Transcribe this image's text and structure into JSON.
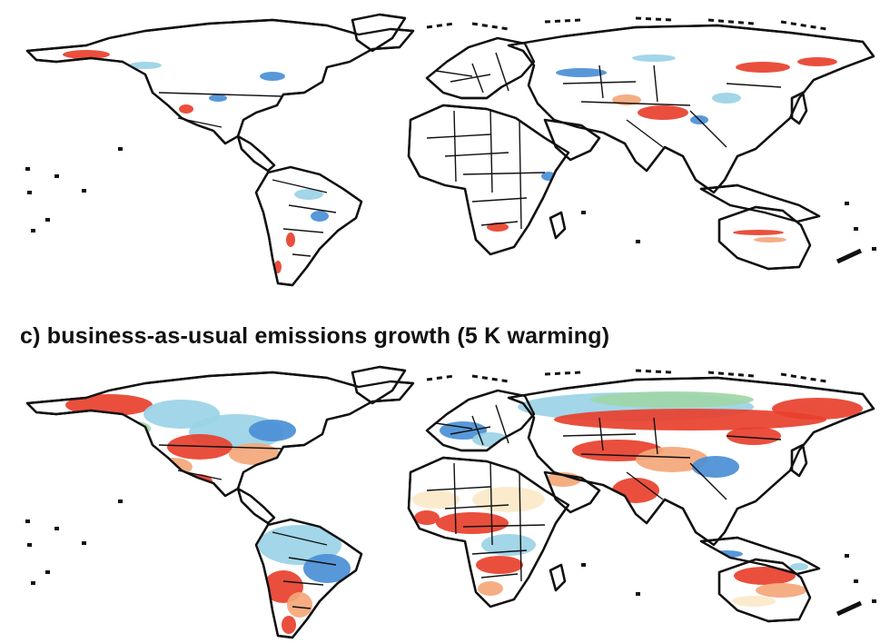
{
  "panel_c": {
    "title": "c) business-as-usual emissions growth (5 K warming)"
  },
  "colors": {
    "land": "#ffffff",
    "outline": "#111111",
    "strong_positive": "#e8402c",
    "weak_positive": "#f4a77a",
    "pale": "#fbe9c8",
    "neutral": "#eef6f8",
    "weak_negative": "#9ad3e6",
    "strong_negative": "#4a8fd6",
    "green_tone": "#9fd6a8"
  }
}
